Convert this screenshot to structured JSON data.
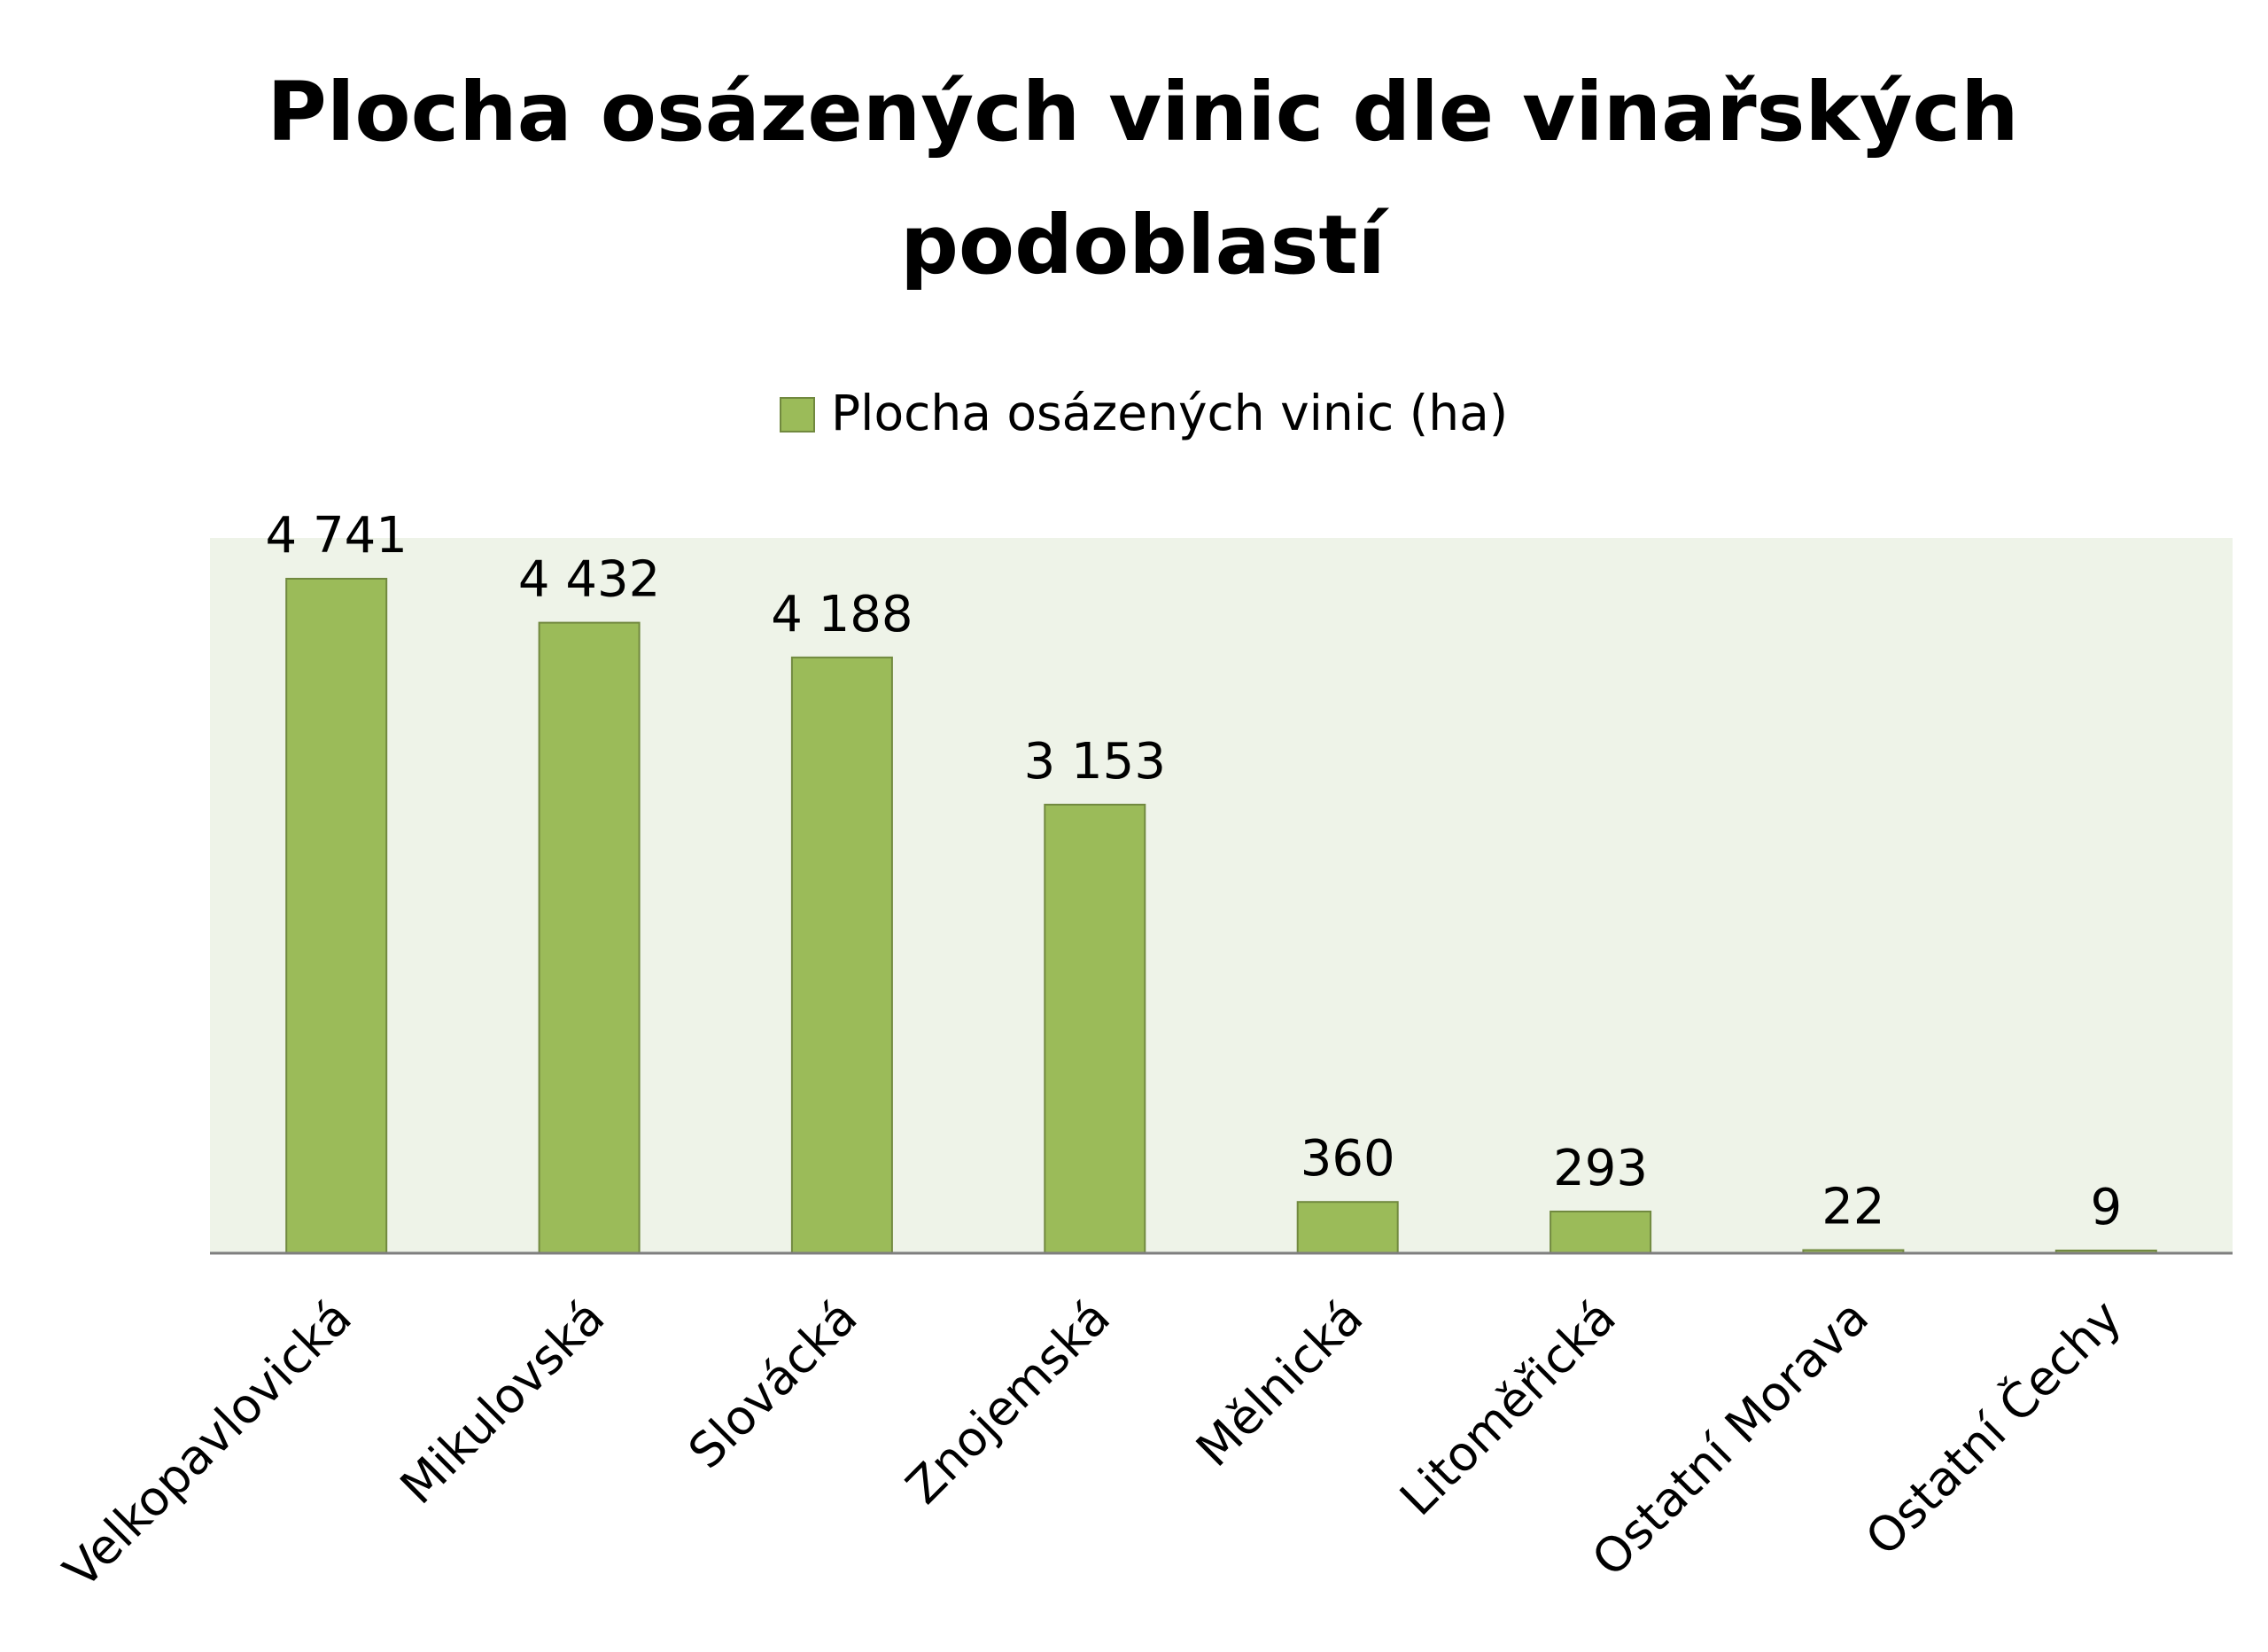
{
  "chart_data": {
    "type": "bar",
    "title_line1": "Plocha osázených vinic dle vinařských",
    "title_line2": "podoblastí",
    "legend_label": "Plocha osázených vinic (ha)",
    "legend_position": "top",
    "grid": false,
    "categories": [
      "Velkopavlovická",
      "Mikulovská",
      "Slovácká",
      "Znojemská",
      "Mělnická",
      "Litoměřická",
      "Ostatní Morava",
      "Ostatní Čechy"
    ],
    "values": [
      4741,
      4432,
      4188,
      3153,
      360,
      293,
      22,
      9
    ],
    "value_labels": [
      "4 741",
      "4 432",
      "4 188",
      "3 153",
      "360",
      "293",
      "22",
      "9"
    ],
    "ylim": [
      0,
      5000
    ],
    "colors": {
      "bar_fill": "#9bbb59",
      "bar_stroke": "#71893f",
      "plot_background": "#eef3e8",
      "axis_line": "#7f7f7f",
      "text": "#000000"
    }
  }
}
